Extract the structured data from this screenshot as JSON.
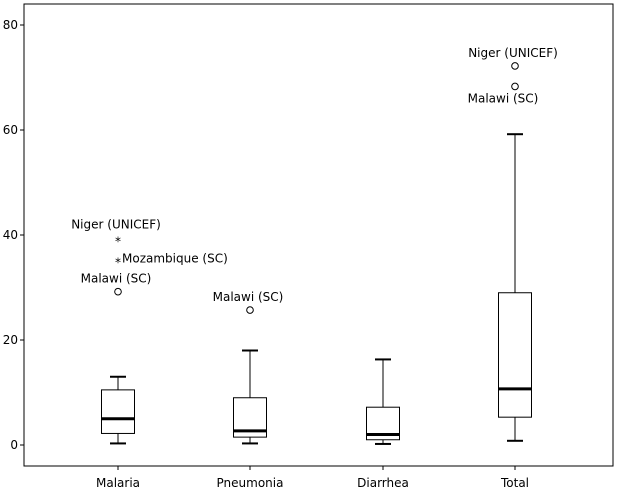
{
  "chart_data": {
    "type": "boxplot",
    "title": "",
    "xlabel": "",
    "ylabel": "",
    "ylim": [
      -4,
      84
    ],
    "yticks": [
      0,
      20,
      40,
      60,
      80
    ],
    "categories": [
      "Malaria",
      "Pneumonia",
      "Diarrhea",
      "Total"
    ],
    "boxes": [
      {
        "category": "Malaria",
        "min": 0.3,
        "q1": 2.2,
        "median": 5.0,
        "q3": 10.5,
        "max": 13.0
      },
      {
        "category": "Pneumonia",
        "min": 0.3,
        "q1": 1.5,
        "median": 2.7,
        "q3": 9.0,
        "max": 18.0
      },
      {
        "category": "Diarrhea",
        "min": 0.2,
        "q1": 1.0,
        "median": 2.0,
        "q3": 7.2,
        "max": 16.3
      },
      {
        "category": "Total",
        "min": 0.8,
        "q1": 5.3,
        "median": 10.7,
        "q3": 29.0,
        "max": 59.2
      }
    ],
    "outliers": [
      {
        "category": "Malaria",
        "value": 39.5,
        "marker": "star",
        "label": "Niger (UNICEF)"
      },
      {
        "category": "Malaria",
        "value": 35.5,
        "marker": "star",
        "label": "Mozambique (SC)"
      },
      {
        "category": "Malaria",
        "value": 29.2,
        "marker": "circle",
        "label": "Malawi (SC)"
      },
      {
        "category": "Pneumonia",
        "value": 25.7,
        "marker": "circle",
        "label": "Malawi (SC)"
      },
      {
        "category": "Total",
        "value": 72.2,
        "marker": "circle",
        "label": "Niger (UNICEF)"
      },
      {
        "category": "Total",
        "value": 68.3,
        "marker": "circle",
        "label": "Malawi (SC)"
      }
    ]
  }
}
